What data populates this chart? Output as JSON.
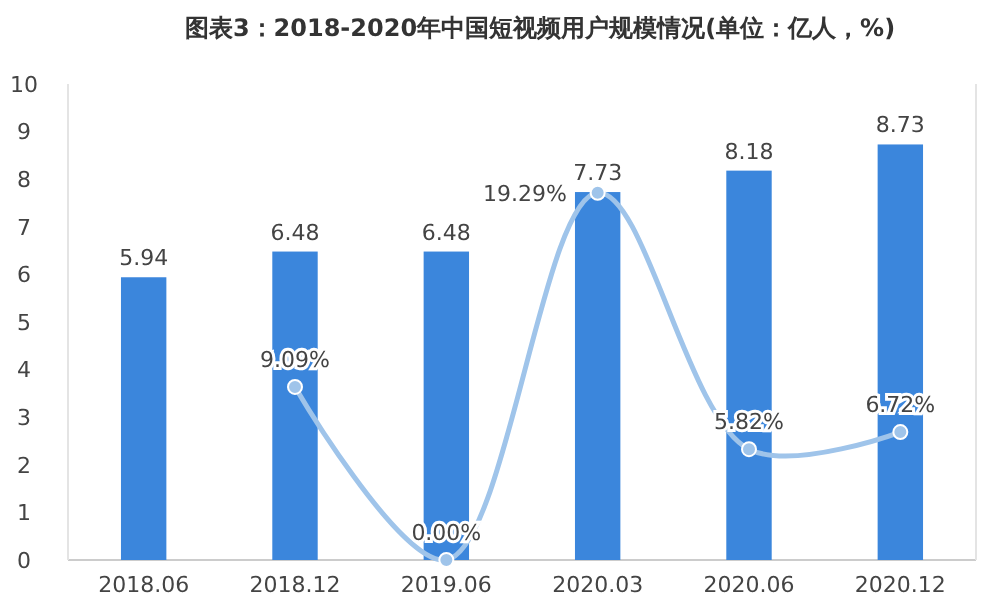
{
  "chart_data": {
    "type": "bar",
    "title": "图表3：2018-2020年中国短视频用户规模情况(单位：亿人，%)",
    "categories": [
      "2018.06",
      "2018.12",
      "2019.06",
      "2020.03",
      "2020.06",
      "2020.12"
    ],
    "series": [
      {
        "color": "#3b86dc",
        "values": [
          5.94,
          6.48,
          6.48,
          7.73,
          8.18,
          8.73
        ],
        "value_labels": [
          "5.94",
          "6.48",
          "6.48",
          "7.73",
          "8.18",
          "8.73"
        ]
      },
      {
        "type": "line",
        "axis": "y2",
        "color": "#9fc4ea",
        "values": [
          null,
          9.09,
          0.0,
          19.29,
          5.82,
          6.72
        ],
        "value_labels": [
          null,
          "9.09%",
          "0.00%",
          "19.29%",
          "5.82%",
          "6.72%"
        ]
      }
    ],
    "ylim": [
      0,
      10
    ],
    "yticks": [
      0,
      1,
      2,
      3,
      4,
      5,
      6,
      7,
      8,
      9,
      10
    ],
    "y2lim": [
      0,
      25
    ],
    "tick_labels": "xy",
    "marker": "circle",
    "line_style": "solid",
    "grid": false
  }
}
